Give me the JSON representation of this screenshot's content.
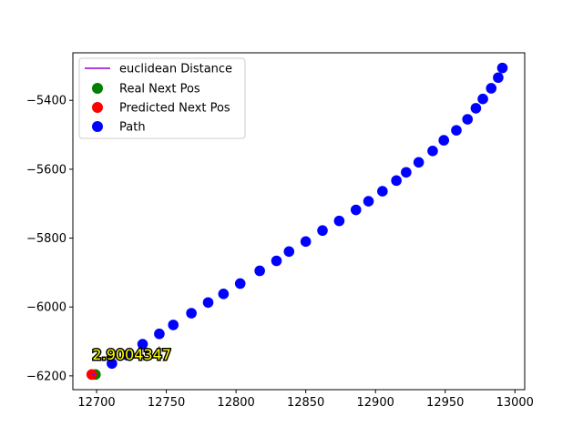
{
  "chart_data": {
    "type": "scatter",
    "xlim": [
      12683,
      13007
    ],
    "ylim": [
      -6240,
      -5262
    ],
    "xticks": [
      12700,
      12750,
      12800,
      12850,
      12900,
      12950,
      13000
    ],
    "yticks": [
      -6200,
      -6000,
      -5800,
      -5600,
      -5400
    ],
    "xtick_labels": [
      "12700",
      "12750",
      "12800",
      "12850",
      "12900",
      "12950",
      "13000"
    ],
    "ytick_labels": [
      "−6200",
      "−6000",
      "−5800",
      "−5600",
      "−5400"
    ],
    "grid": false,
    "legend_position": "upper-left",
    "series": [
      {
        "name": "euclidean Distance",
        "kind": "line",
        "color": "#9400d3",
        "x": [
          12696.5,
          12699.2
        ],
        "y": [
          -6196,
          -6196
        ]
      },
      {
        "name": "Real Next Pos",
        "kind": "scatter",
        "color": "#008000",
        "x": [
          12699.2
        ],
        "y": [
          -6196
        ]
      },
      {
        "name": "Predicted Next Pos",
        "kind": "scatter",
        "color": "#ff0000",
        "x": [
          12696.5
        ],
        "y": [
          -6196
        ]
      },
      {
        "name": "Path",
        "kind": "scatter",
        "color": "#0000ff",
        "x": [
          12711,
          12722,
          12733,
          12745,
          12755,
          12768,
          12780,
          12791,
          12803,
          12817,
          12829,
          12838,
          12850,
          12862,
          12874,
          12886,
          12895,
          12905,
          12915,
          12922,
          12931,
          12941,
          12949,
          12958,
          12966,
          12972,
          12977,
          12983,
          12988,
          12991
        ],
        "y": [
          -6164,
          -6140,
          -6108,
          -6078,
          -6052,
          -6018,
          -5987,
          -5962,
          -5932,
          -5895,
          -5866,
          -5839,
          -5810,
          -5778,
          -5750,
          -5718,
          -5693,
          -5664,
          -5633,
          -5609,
          -5580,
          -5547,
          -5516,
          -5487,
          -5455,
          -5423,
          -5396,
          -5365,
          -5334,
          -5306
        ]
      }
    ],
    "annotation": {
      "text": "2.9004347",
      "x": 12697,
      "y": -6137
    }
  }
}
